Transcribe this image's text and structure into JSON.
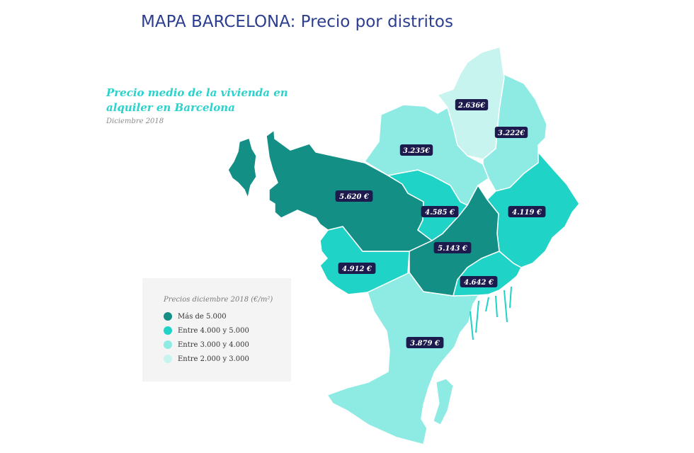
{
  "title": "MAPA BARCELONA: Precio por distritos",
  "subtitle": "Precio medio de la vivienda en alquiler en Barcelona",
  "date": "Diciembre 2018",
  "colors": {
    "title": "#2c3e8f",
    "subtitle": "#2ad3cb",
    "cat_over_5000": "#138f86",
    "cat_4000_5000": "#1fd3c7",
    "cat_3000_4000": "#8eebe4",
    "cat_2000_3000": "#c8f4f0",
    "price_tag_bg": "#1d1a4e"
  },
  "legend": {
    "title": "Precios diciembre 2018 (€/m²)",
    "items": [
      {
        "label": "Más de 5.000",
        "color": "#138f86"
      },
      {
        "label": "Entre 4.000 y 5.000",
        "color": "#1fd3c7"
      },
      {
        "label": "Entre 3.000 y 4.000",
        "color": "#8eebe4"
      },
      {
        "label": "Entre 2.000 y 3.000",
        "color": "#c8f4f0"
      }
    ]
  },
  "districts": [
    {
      "id": "sarria-sant-gervasi",
      "price": "5.620 €",
      "category": "Más de 5.000"
    },
    {
      "id": "les-corts",
      "price": "4.912 €",
      "category": "Entre 4.000 y 5.000"
    },
    {
      "id": "eixample",
      "price": "5.143 €",
      "category": "Más de 5.000"
    },
    {
      "id": "gracia",
      "price": "4.585 €",
      "category": "Entre 4.000 y 5.000"
    },
    {
      "id": "horta-guinardo",
      "price": "3.235€",
      "category": "Entre 3.000 y 4.000"
    },
    {
      "id": "nou-barris",
      "price": "2.636€",
      "category": "Entre 2.000 y 3.000"
    },
    {
      "id": "sant-andreu",
      "price": "3.222€",
      "category": "Entre 3.000 y 4.000"
    },
    {
      "id": "sant-marti",
      "price": "4.119 €",
      "category": "Entre 4.000 y 5.000"
    },
    {
      "id": "ciutat-vella",
      "price": "4.642 €",
      "category": "Entre 4.000 y 5.000"
    },
    {
      "id": "sants-montjuic",
      "price": "3.879 €",
      "category": "Entre 3.000 y 4.000"
    }
  ]
}
